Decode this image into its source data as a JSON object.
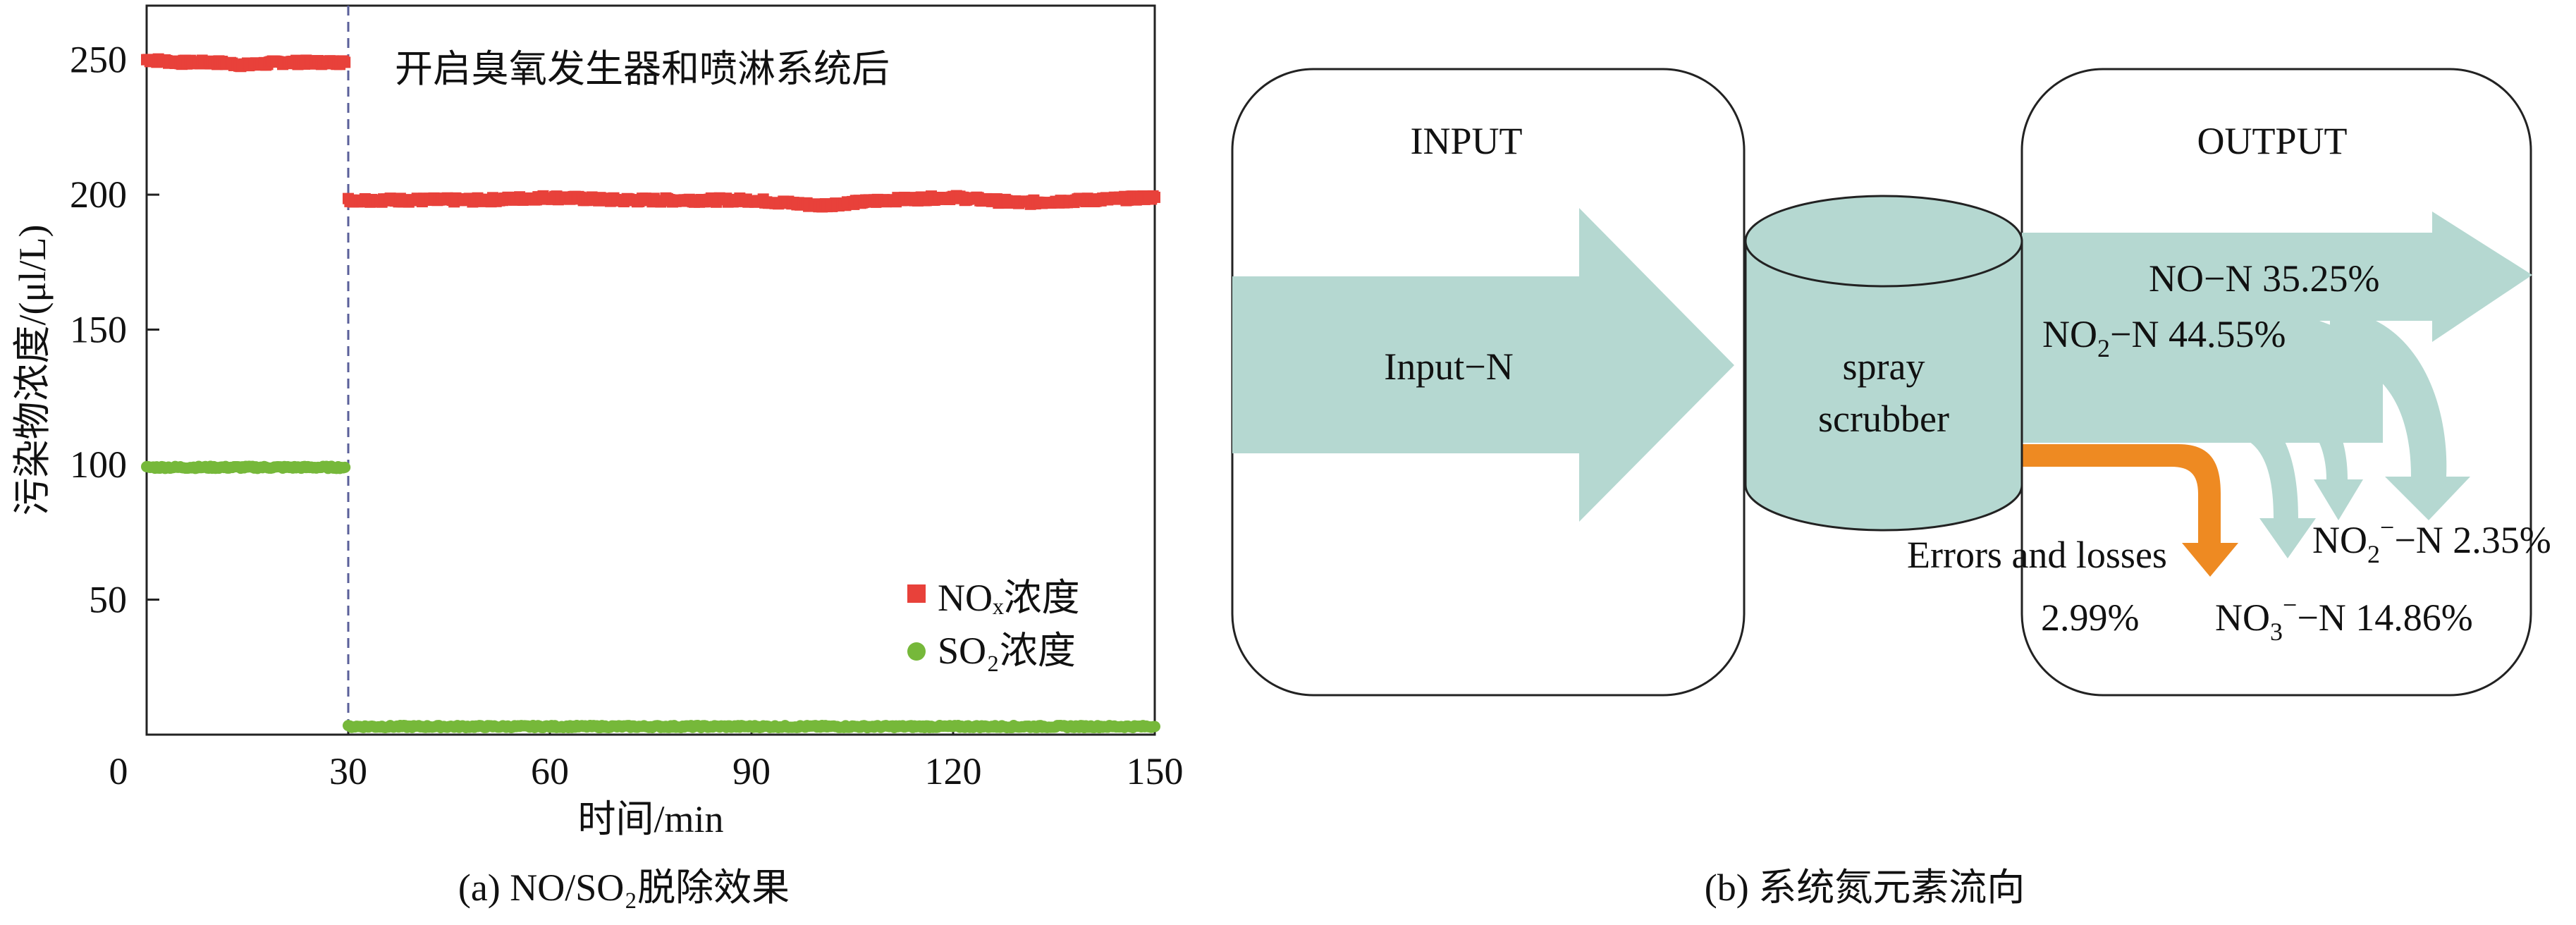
{
  "colors": {
    "nox": "#e8413a",
    "so2": "#76b83a",
    "flow": "#b5d8d1",
    "loss": "#ee8a22",
    "divider": "#5a5f9a"
  },
  "panel_a": {
    "ylabel": "污染物浓度/(μl/L)",
    "xlabel": "时间/min",
    "annotation": "开启臭氧发生器和喷淋系统后",
    "caption": "(a) NO/SO₂脱除效果",
    "legend": [
      {
        "label": "NOₓ浓度",
        "marker": "square",
        "color": "#e8413a"
      },
      {
        "label": "SO₂浓度",
        "marker": "circle",
        "color": "#76b83a"
      }
    ]
  },
  "chart_data": {
    "type": "line",
    "xlabel": "时间/min",
    "ylabel": "污染物浓度/(μl/L)",
    "xlim": [
      0,
      150
    ],
    "ylim": [
      0,
      270
    ],
    "xticks": [
      0,
      30,
      60,
      90,
      120,
      150
    ],
    "yticks": [
      50,
      100,
      150,
      200,
      250
    ],
    "vline_x": 30,
    "legend_position": "bottom-right",
    "grid": false,
    "series": [
      {
        "name": "NOₓ浓度",
        "marker": "square",
        "color": "#e8413a",
        "segments": [
          {
            "x": [
              0,
              5,
              10,
              15,
              20,
              25,
              29.5
            ],
            "y": [
              250,
              249,
              249,
              248,
              249,
              249,
              249
            ]
          },
          {
            "x": [
              30,
              40,
              50,
              60,
              70,
              80,
              90,
              100,
              110,
              120,
              130,
              140,
              150
            ],
            "y": [
              198,
              198,
              198,
              199,
              198,
              198,
              198,
              196,
              198,
              199,
              197,
              198,
              199
            ]
          }
        ]
      },
      {
        "name": "SO₂浓度",
        "marker": "circle",
        "color": "#76b83a",
        "segments": [
          {
            "x": [
              0,
              5,
              10,
              15,
              20,
              25,
              29.5
            ],
            "y": [
              99,
              99,
              99,
              99,
              99,
              99,
              99
            ]
          },
          {
            "x": [
              30,
              40,
              50,
              60,
              70,
              80,
              90,
              100,
              110,
              120,
              130,
              140,
              150
            ],
            "y": [
              3,
              3,
              3,
              3,
              3,
              3,
              3,
              3,
              3,
              3,
              3,
              3,
              3
            ]
          }
        ]
      }
    ]
  },
  "panel_b": {
    "input_title": "INPUT",
    "output_title": "OUTPUT",
    "input_label": "Input−N",
    "scrubber_line1": "spray",
    "scrubber_line2": "scrubber",
    "no_label": "NO−N 35.25%",
    "no2_label_a": "NO",
    "no2_label_sub": "2",
    "no2_label_b": "−N 44.55%",
    "errors_label": "Errors and losses",
    "errors_value": "2.99%",
    "no2m_a": "NO",
    "no2m_sub": "2",
    "no2m_sup": "−",
    "no2m_b": "−N 2.35%",
    "no3m_a": "NO",
    "no3m_sub": "3",
    "no3m_sup": "−",
    "no3m_b": "−N 14.86%",
    "caption": "(b) 系统氮元素流向"
  }
}
